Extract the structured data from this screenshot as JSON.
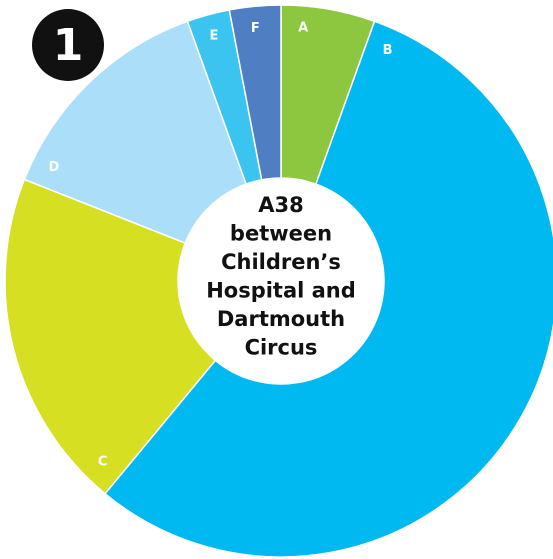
{
  "chart_data": {
    "type": "donut",
    "badge": "1",
    "center_text": [
      "A38",
      "between",
      "Children’s",
      "Hospital and",
      "Dartmouth",
      "Circus"
    ],
    "categories": [
      "A",
      "B",
      "C",
      "D",
      "E",
      "F"
    ],
    "values": [
      5.5,
      55.5,
      20,
      13.5,
      2.5,
      3
    ],
    "colors": [
      "#8dc63f",
      "#00b9f1",
      "#d7df23",
      "#abdff9",
      "#3cc4f0",
      "#4f7fc2"
    ]
  }
}
